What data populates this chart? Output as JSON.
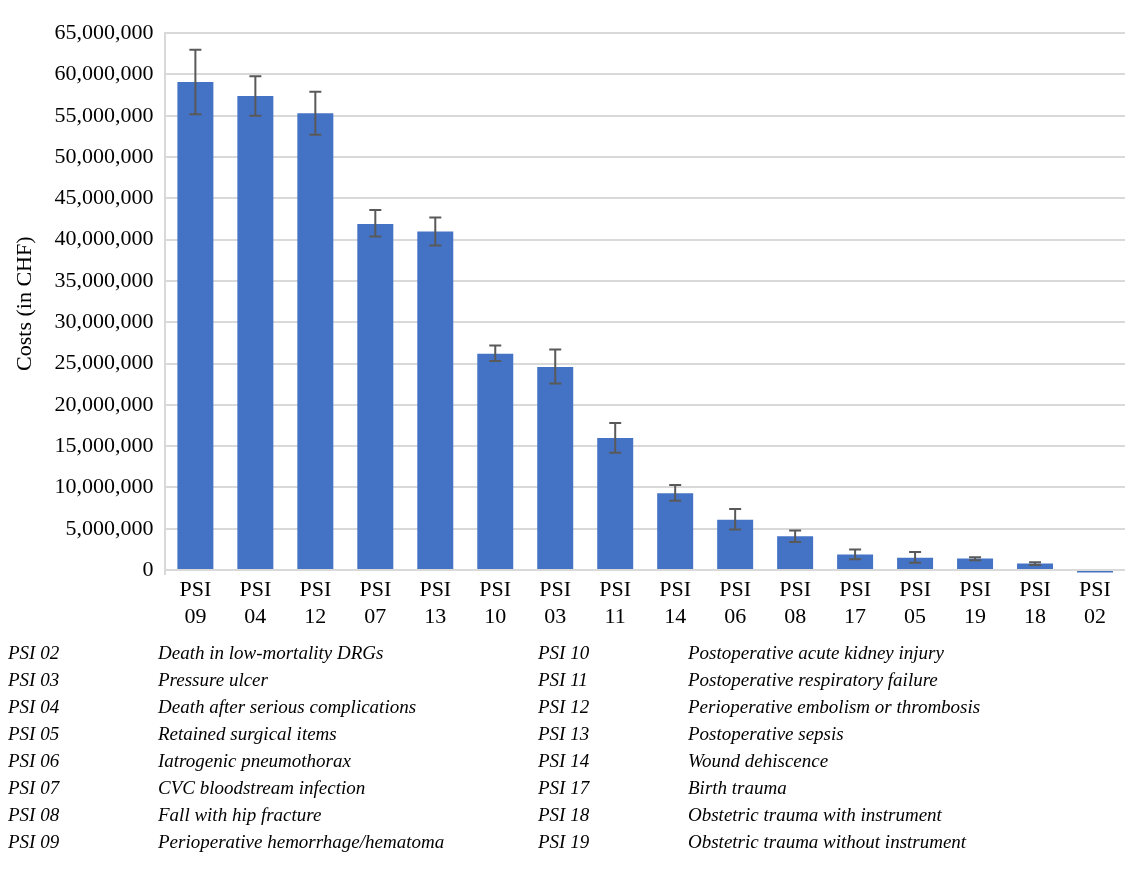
{
  "chart_data": {
    "type": "bar",
    "ylabel": "Costs (in CHF)",
    "categories": [
      "PSI 09",
      "PSI 04",
      "PSI 12",
      "PSI 07",
      "PSI 13",
      "PSI 10",
      "PSI 03",
      "PSI 11",
      "PSI 14",
      "PSI 06",
      "PSI 08",
      "PSI 17",
      "PSI 05",
      "PSI 19",
      "PSI 18",
      "PSI 02"
    ],
    "values": [
      59100000,
      57400000,
      55300000,
      41900000,
      41000000,
      26200000,
      24600000,
      16000000,
      9300000,
      6100000,
      4100000,
      1900000,
      1500000,
      1400000,
      800000,
      -300000
    ],
    "errors": [
      [
        55200000,
        63000000
      ],
      [
        55000000,
        59800000
      ],
      [
        52700000,
        57900000
      ],
      [
        40400000,
        43600000
      ],
      [
        39300000,
        42700000
      ],
      [
        25300000,
        27200000
      ],
      [
        22600000,
        26700000
      ],
      [
        14200000,
        17800000
      ],
      [
        8400000,
        10300000
      ],
      [
        4900000,
        7400000
      ],
      [
        3400000,
        4800000
      ],
      [
        1300000,
        2500000
      ],
      [
        900000,
        2200000
      ],
      [
        1200000,
        1550000
      ],
      [
        600000,
        950000
      ],
      null
    ],
    "color": "#4472c4",
    "ylim": [
      -500000,
      65000000
    ],
    "yticks": [
      0,
      {
        "value": 5000000,
        "label": "5,000,000"
      },
      {
        "value": 10000000,
        "label": "10,000,000"
      },
      {
        "value": 15000000,
        "label": "15,000,000"
      },
      {
        "value": 20000000,
        "label": "20,000,000"
      },
      {
        "value": 25000000,
        "label": "25,000,000"
      },
      {
        "value": 30000000,
        "label": "30,000,000"
      },
      {
        "value": 35000000,
        "label": "35,000,000"
      },
      {
        "value": 40000000,
        "label": "40,000,000"
      },
      {
        "value": 45000000,
        "label": "45,000,000"
      },
      {
        "value": 50000000,
        "label": "50,000,000"
      },
      {
        "value": 55000000,
        "label": "55,000,000"
      },
      {
        "value": 60000000,
        "label": "60,000,000"
      },
      {
        "value": 65000000,
        "label": "65,000,000"
      }
    ],
    "grid": "y",
    "annotations": [
      "PSI 02",
      "Death in low-mortality DRGs",
      "PSI 03",
      "Pressure ulcer",
      "PSI 04",
      "Death after serious complications",
      "PSI 05",
      "Retained surgical items",
      "PSI 06",
      "Iatrogenic pneumothorax",
      "PSI 07",
      "CVC bloodstream infection",
      "PSI 08",
      "Fall with hip fracture",
      "PSI 09",
      "Perioperative hemorrhage/hematoma",
      "PSI 10",
      "Postoperative acute kidney injury",
      "PSI 11",
      "Postoperative respiratory failure",
      "PSI 12",
      "Perioperative embolism or thrombosis",
      "PSI 13",
      "Postoperative sepsis",
      "PSI 14",
      "Wound dehiscence",
      "PSI 17",
      "Birth trauma",
      "PSI 18",
      "Obstetric trauma with instrument",
      "PSI 19",
      "Obstetric trauma without instrument"
    ]
  }
}
